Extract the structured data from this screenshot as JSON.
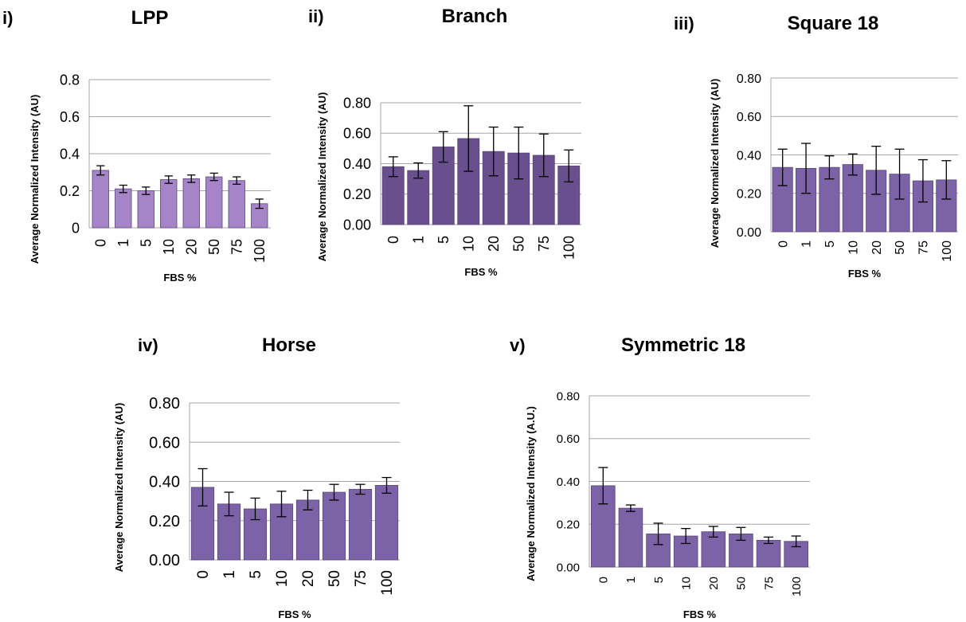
{
  "chart_data": [
    {
      "type": "bar",
      "panel_label": "i)",
      "title": "LPP",
      "xlabel": "FBS %",
      "ylabel": "Average Normalized Intensity (AU)",
      "categories": [
        "0",
        "1",
        "5",
        "10",
        "20",
        "50",
        "75",
        "100"
      ],
      "values": [
        0.31,
        0.21,
        0.2,
        0.26,
        0.265,
        0.275,
        0.255,
        0.13
      ],
      "errors": [
        0.025,
        0.02,
        0.02,
        0.02,
        0.02,
        0.02,
        0.02,
        0.025
      ],
      "yticks": [
        "0",
        "0.2",
        "0.4",
        "0.6",
        "0.8"
      ],
      "ylim": [
        0,
        0.8
      ],
      "bar_color": "#a585c8",
      "grid": true
    },
    {
      "type": "bar",
      "panel_label": "ii)",
      "title": "Branch",
      "xlabel": "FBS %",
      "ylabel": "Average Normalized Intensity (AU)",
      "categories": [
        "0",
        "1",
        "5",
        "10",
        "20",
        "50",
        "75",
        "100"
      ],
      "values": [
        0.38,
        0.355,
        0.51,
        0.565,
        0.48,
        0.47,
        0.455,
        0.385
      ],
      "errors": [
        0.065,
        0.05,
        0.1,
        0.215,
        0.16,
        0.17,
        0.14,
        0.105
      ],
      "yticks": [
        "0.00",
        "0.20",
        "0.40",
        "0.60",
        "0.80"
      ],
      "ylim": [
        0,
        0.8
      ],
      "bar_color": "#6a4f8e",
      "grid": true
    },
    {
      "type": "bar",
      "panel_label": "iii)",
      "title": "Square 18",
      "xlabel": "FBS %",
      "ylabel": "Average Normalized Intensity (AU)",
      "categories": [
        "0",
        "1",
        "5",
        "10",
        "20",
        "50",
        "75",
        "100"
      ],
      "values": [
        0.335,
        0.33,
        0.335,
        0.35,
        0.32,
        0.3,
        0.265,
        0.27
      ],
      "errors": [
        0.095,
        0.13,
        0.06,
        0.055,
        0.125,
        0.13,
        0.11,
        0.1
      ],
      "yticks": [
        "0.00",
        "0.20",
        "0.40",
        "0.60",
        "0.80"
      ],
      "ylim": [
        0,
        0.8
      ],
      "bar_color": "#7c62a6",
      "grid": true
    },
    {
      "type": "bar",
      "panel_label": "iv)",
      "title": "Horse",
      "xlabel": "FBS %",
      "ylabel": "Average Normalized Intensity (AU)",
      "categories": [
        "0",
        "1",
        "5",
        "10",
        "20",
        "50",
        "75",
        "100"
      ],
      "values": [
        0.37,
        0.285,
        0.26,
        0.285,
        0.305,
        0.345,
        0.36,
        0.38
      ],
      "errors": [
        0.095,
        0.06,
        0.055,
        0.065,
        0.05,
        0.04,
        0.025,
        0.04
      ],
      "yticks": [
        "0.00",
        "0.20",
        "0.40",
        "0.60",
        "0.80"
      ],
      "ylim": [
        0,
        0.8
      ],
      "bar_color": "#7c62a6",
      "grid": true
    },
    {
      "type": "bar",
      "panel_label": "v)",
      "title": "Symmetric 18",
      "xlabel": "FBS %",
      "ylabel": "Average Normalized Intensity (A.U.)",
      "categories": [
        "0",
        "1",
        "5",
        "10",
        "20",
        "50",
        "75",
        "100"
      ],
      "values": [
        0.38,
        0.275,
        0.155,
        0.145,
        0.165,
        0.155,
        0.125,
        0.12
      ],
      "errors": [
        0.085,
        0.015,
        0.05,
        0.035,
        0.025,
        0.03,
        0.015,
        0.025
      ],
      "yticks": [
        "0.00",
        "0.20",
        "0.40",
        "0.60",
        "0.80"
      ],
      "ylim": [
        0,
        0.8
      ],
      "bar_color": "#7c62a6",
      "grid": true
    }
  ]
}
